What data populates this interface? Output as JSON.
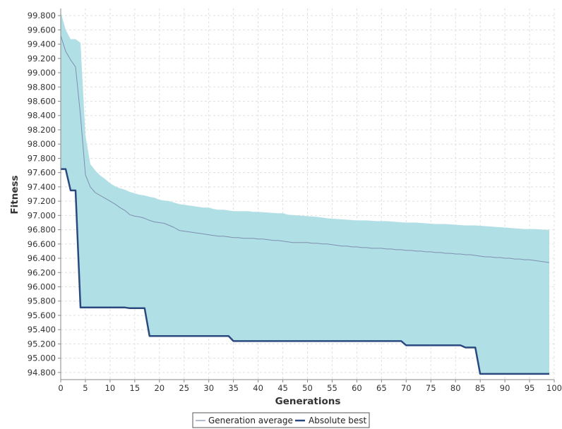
{
  "chart_data": {
    "type": "area",
    "xlabel": "Generations",
    "ylabel": "Fitness",
    "xlim": [
      0,
      100
    ],
    "ylim": [
      94.7,
      99.9
    ],
    "x_ticks": [
      0,
      5,
      10,
      15,
      20,
      25,
      30,
      35,
      40,
      45,
      50,
      55,
      60,
      65,
      70,
      75,
      80,
      85,
      90,
      95,
      100
    ],
    "y_ticks": [
      94.8,
      95.0,
      95.2,
      95.4,
      95.6,
      95.8,
      96.0,
      96.2,
      96.4,
      96.6,
      96.8,
      97.0,
      97.2,
      97.4,
      97.6,
      97.8,
      98.0,
      98.2,
      98.4,
      98.6,
      98.8,
      99.0,
      99.2,
      99.4,
      99.6,
      99.8
    ],
    "y_tick_labels": [
      "94.800",
      "95.000",
      "95.200",
      "95.400",
      "95.600",
      "95.800",
      "96.000",
      "96.200",
      "96.400",
      "96.600",
      "96.800",
      "97.000",
      "97.200",
      "97.400",
      "97.600",
      "97.800",
      "98.000",
      "98.200",
      "98.400",
      "98.600",
      "98.800",
      "99.000",
      "99.200",
      "99.400",
      "99.600",
      "99.800"
    ],
    "grid": true,
    "legend_position": "bottom",
    "band": {
      "x": [
        0,
        1,
        2,
        3,
        4,
        5,
        6,
        7,
        8,
        9,
        10,
        11,
        12,
        13,
        14,
        15,
        16,
        17,
        18,
        19,
        20,
        21,
        22,
        23,
        24,
        25,
        26,
        27,
        28,
        29,
        30,
        31,
        32,
        33,
        34,
        35,
        36,
        37,
        38,
        39,
        40,
        42,
        44,
        45,
        46,
        48,
        50,
        52,
        54,
        56,
        58,
        60,
        62,
        64,
        66,
        68,
        70,
        72,
        74,
        76,
        78,
        80,
        82,
        84,
        86,
        88,
        90,
        92,
        94,
        96,
        98,
        99
      ],
      "upper": [
        99.85,
        99.6,
        99.47,
        99.47,
        99.42,
        98.12,
        97.72,
        97.63,
        97.56,
        97.51,
        97.45,
        97.41,
        97.38,
        97.36,
        97.33,
        97.31,
        97.29,
        97.28,
        97.26,
        97.25,
        97.22,
        97.21,
        97.2,
        97.18,
        97.16,
        97.15,
        97.14,
        97.13,
        97.12,
        97.11,
        97.11,
        97.09,
        97.08,
        97.08,
        97.07,
        97.06,
        97.06,
        97.06,
        97.06,
        97.05,
        97.05,
        97.04,
        97.03,
        97.03,
        97.01,
        97.0,
        96.99,
        96.98,
        96.96,
        96.95,
        96.94,
        96.93,
        96.93,
        96.92,
        96.92,
        96.91,
        96.9,
        96.9,
        96.89,
        96.88,
        96.88,
        96.87,
        96.86,
        96.86,
        96.85,
        96.84,
        96.83,
        96.82,
        96.81,
        96.81,
        96.8,
        96.8
      ]
    },
    "x": [
      0,
      1,
      2,
      3,
      4,
      5,
      6,
      7,
      8,
      9,
      10,
      11,
      12,
      13,
      14,
      15,
      16,
      17,
      18,
      19,
      20,
      21,
      22,
      23,
      24,
      25,
      26,
      27,
      28,
      29,
      30,
      31,
      32,
      33,
      34,
      35,
      36,
      37,
      38,
      39,
      40,
      41,
      42,
      43,
      44,
      45,
      46,
      47,
      48,
      49,
      50,
      51,
      52,
      53,
      54,
      55,
      56,
      57,
      58,
      59,
      60,
      61,
      62,
      63,
      64,
      65,
      66,
      67,
      68,
      69,
      70,
      71,
      72,
      73,
      74,
      75,
      76,
      77,
      78,
      79,
      80,
      81,
      82,
      83,
      84,
      85,
      86,
      87,
      88,
      89,
      90,
      91,
      92,
      93,
      94,
      95,
      96,
      97,
      98,
      99
    ],
    "series": [
      {
        "name": "Generation average",
        "color": "#7f8fb0",
        "values": [
          99.52,
          99.3,
          99.18,
          99.08,
          98.4,
          97.57,
          97.4,
          97.32,
          97.28,
          97.24,
          97.2,
          97.16,
          97.11,
          97.07,
          97.01,
          96.99,
          96.98,
          96.96,
          96.93,
          96.91,
          96.9,
          96.89,
          96.86,
          96.83,
          96.79,
          96.78,
          96.77,
          96.76,
          96.75,
          96.74,
          96.73,
          96.72,
          96.71,
          96.71,
          96.7,
          96.69,
          96.69,
          96.68,
          96.68,
          96.68,
          96.67,
          96.67,
          96.66,
          96.65,
          96.65,
          96.64,
          96.63,
          96.62,
          96.62,
          96.62,
          96.62,
          96.61,
          96.61,
          96.6,
          96.6,
          96.59,
          96.58,
          96.57,
          96.57,
          96.56,
          96.56,
          96.55,
          96.55,
          96.54,
          96.54,
          96.54,
          96.53,
          96.53,
          96.52,
          96.52,
          96.51,
          96.51,
          96.5,
          96.5,
          96.49,
          96.49,
          96.48,
          96.48,
          96.47,
          96.47,
          96.46,
          96.46,
          96.45,
          96.45,
          96.44,
          96.43,
          96.42,
          96.42,
          96.41,
          96.41,
          96.4,
          96.4,
          96.39,
          96.39,
          96.38,
          96.38,
          96.37,
          96.36,
          96.35,
          96.34
        ]
      },
      {
        "name": "Absolute best",
        "color": "#2a4a7f",
        "values": [
          97.65,
          97.65,
          97.35,
          97.35,
          95.71,
          95.71,
          95.71,
          95.71,
          95.71,
          95.71,
          95.71,
          95.71,
          95.71,
          95.71,
          95.7,
          95.7,
          95.7,
          95.7,
          95.31,
          95.31,
          95.31,
          95.31,
          95.31,
          95.31,
          95.31,
          95.31,
          95.31,
          95.31,
          95.31,
          95.31,
          95.31,
          95.31,
          95.31,
          95.31,
          95.31,
          95.24,
          95.24,
          95.24,
          95.24,
          95.24,
          95.24,
          95.24,
          95.24,
          95.24,
          95.24,
          95.24,
          95.24,
          95.24,
          95.24,
          95.24,
          95.24,
          95.24,
          95.24,
          95.24,
          95.24,
          95.24,
          95.24,
          95.24,
          95.24,
          95.24,
          95.24,
          95.24,
          95.24,
          95.24,
          95.24,
          95.24,
          95.24,
          95.24,
          95.24,
          95.24,
          95.18,
          95.18,
          95.18,
          95.18,
          95.18,
          95.18,
          95.18,
          95.18,
          95.18,
          95.18,
          95.18,
          95.18,
          95.15,
          95.15,
          95.15,
          94.78,
          94.78,
          94.78,
          94.78,
          94.78,
          94.78,
          94.78,
          94.78,
          94.78,
          94.78,
          94.78,
          94.78,
          94.78,
          94.78,
          94.78
        ]
      }
    ],
    "colors": {
      "band_fill": "#b0dfe5",
      "grid": "#e0e0e0",
      "axis": "#888888",
      "legend_border": "#555555"
    }
  }
}
